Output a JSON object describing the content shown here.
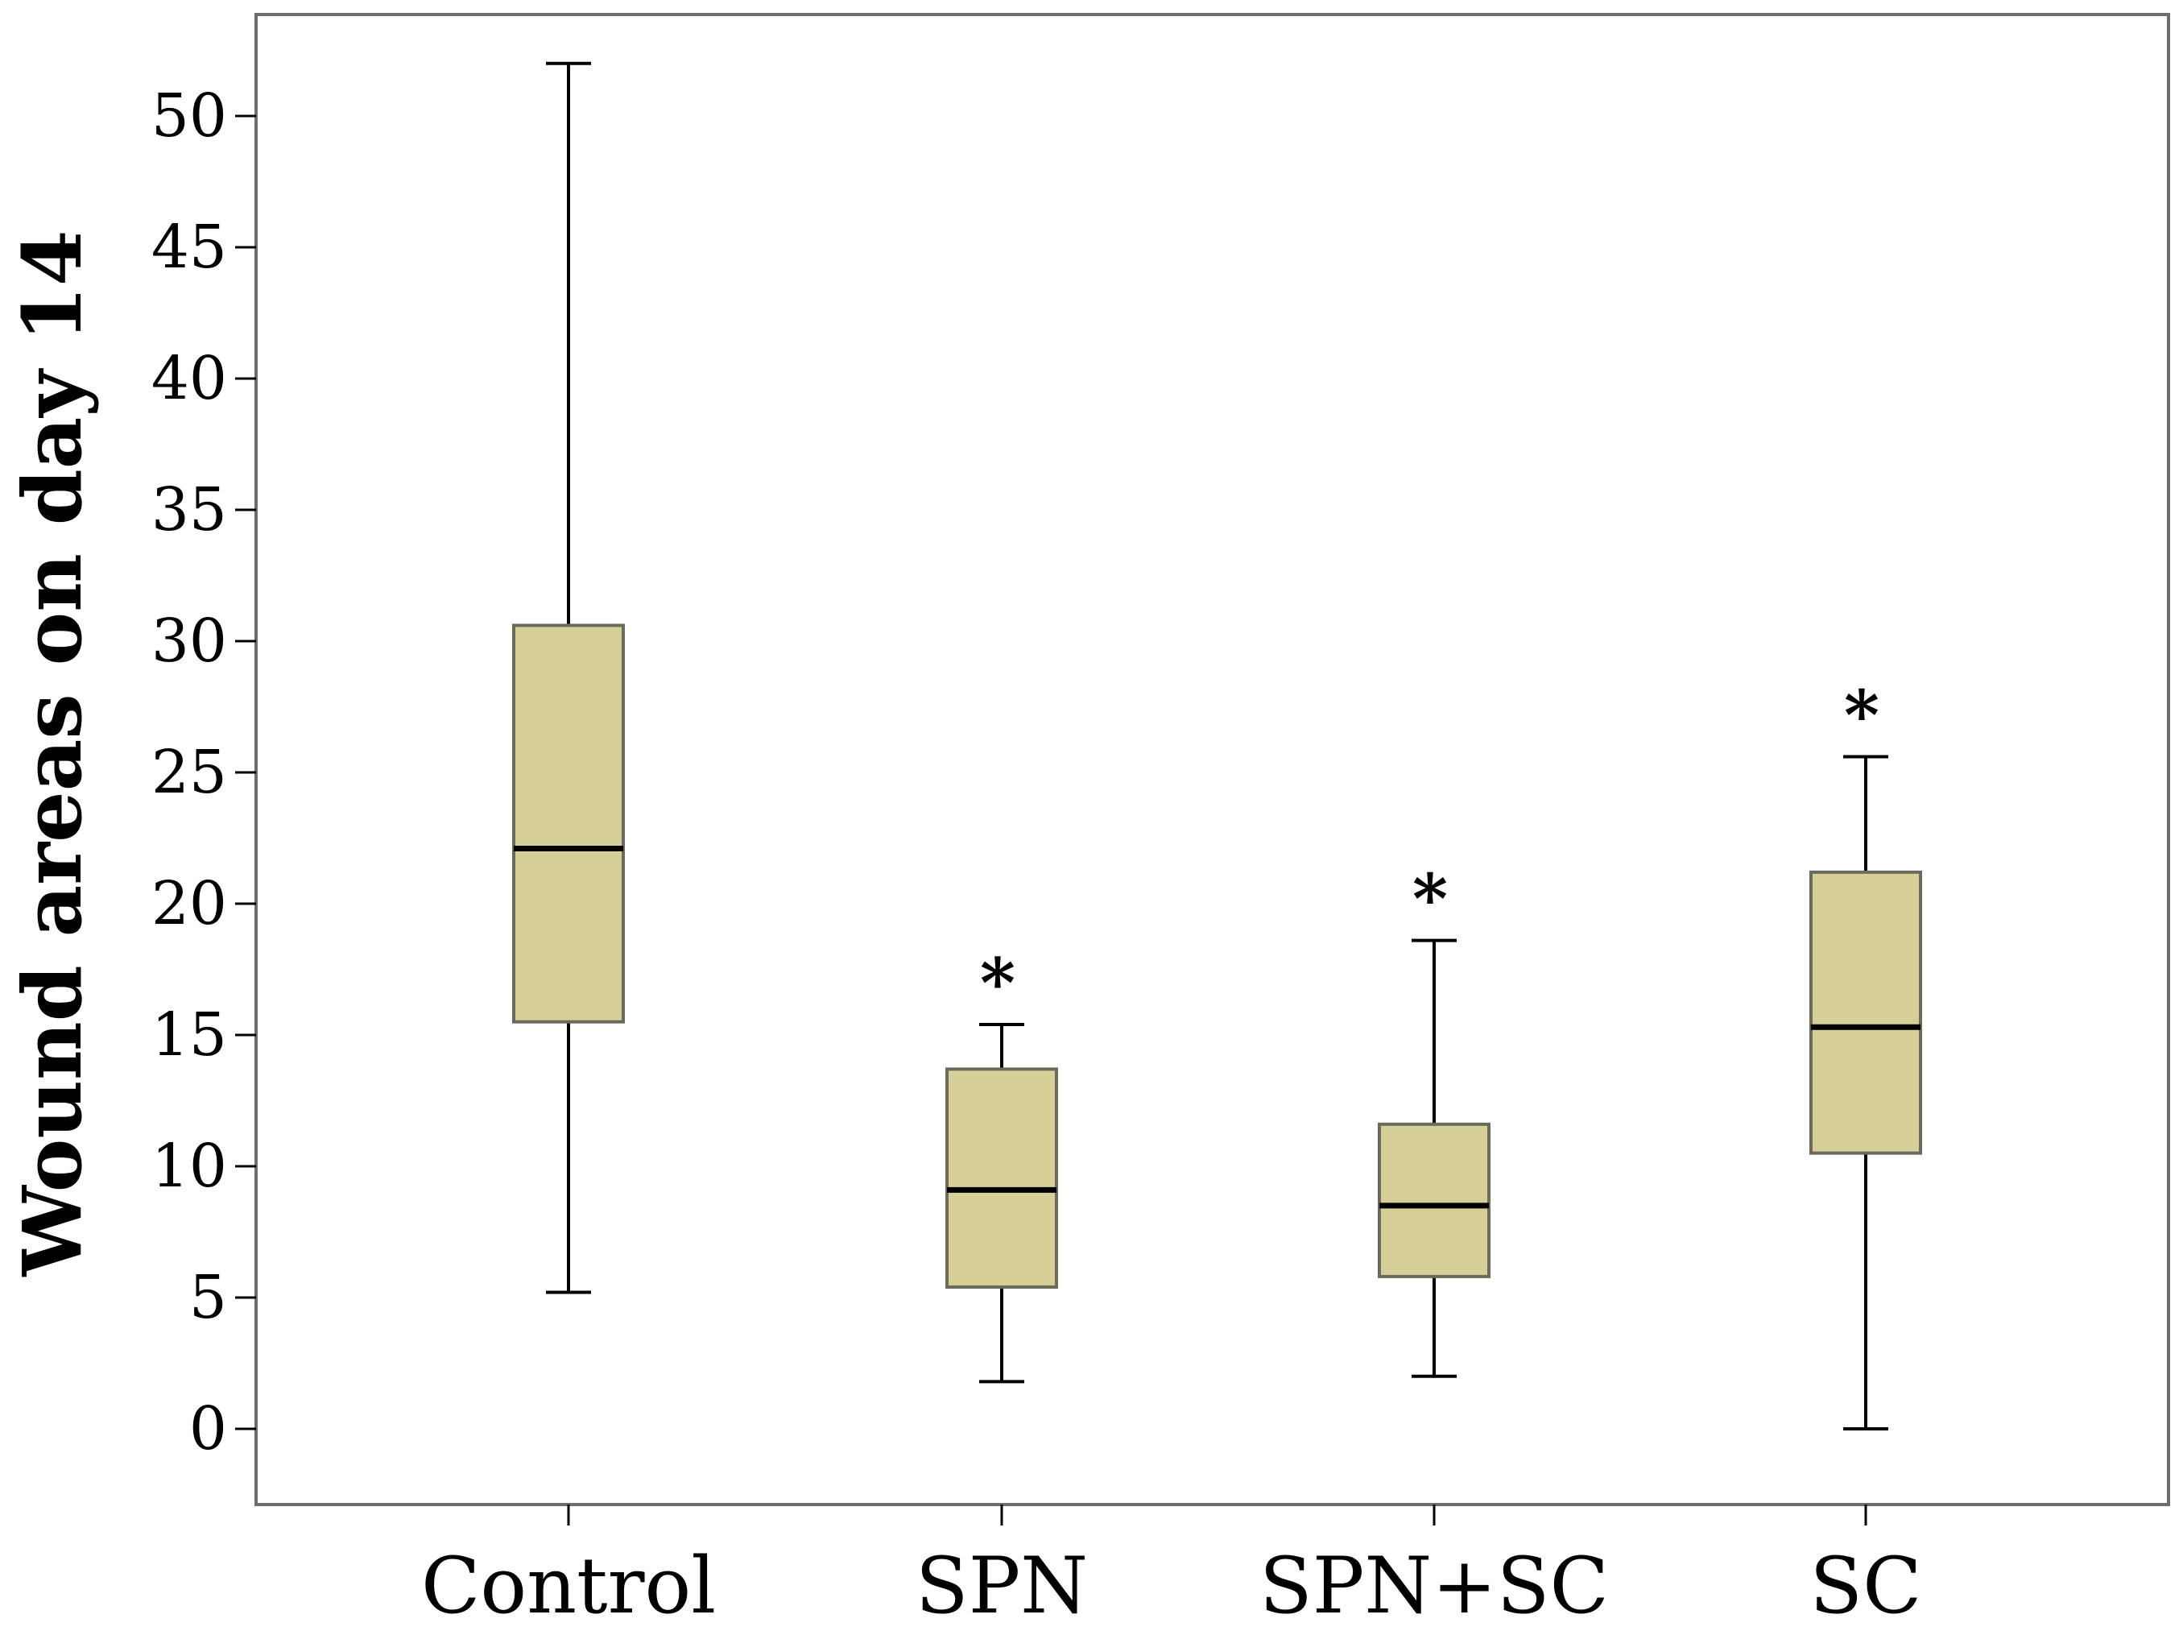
{
  "chart_data": {
    "type": "box",
    "title": "",
    "xlabel": "",
    "ylabel": "Wound areas on day 14",
    "ylim": [
      -2.8,
      54
    ],
    "yticks": [
      0,
      5,
      10,
      15,
      20,
      25,
      30,
      35,
      40,
      45,
      50
    ],
    "grid": false,
    "box_color": "#d6cf97",
    "edge_color": "#6b6b5c",
    "median_color": "#000000",
    "categories": [
      "Control",
      "SPN",
      "SPN+SC",
      "SC"
    ],
    "boxes": [
      {
        "name": "Control",
        "whisker_low": 5.2,
        "q1": 15.5,
        "median": 22.1,
        "q3": 30.6,
        "whisker_high": 52.0,
        "annotation": ""
      },
      {
        "name": "SPN",
        "whisker_low": 1.8,
        "q1": 5.4,
        "median": 9.1,
        "q3": 13.7,
        "whisker_high": 15.4,
        "annotation": "*"
      },
      {
        "name": "SPN+SC",
        "whisker_low": 2.0,
        "q1": 5.8,
        "median": 8.5,
        "q3": 11.6,
        "whisker_high": 18.6,
        "annotation": "*"
      },
      {
        "name": "SC",
        "whisker_low": 0.0,
        "q1": 10.5,
        "median": 15.3,
        "q3": 21.2,
        "whisker_high": 25.6,
        "annotation": "*"
      }
    ]
  }
}
